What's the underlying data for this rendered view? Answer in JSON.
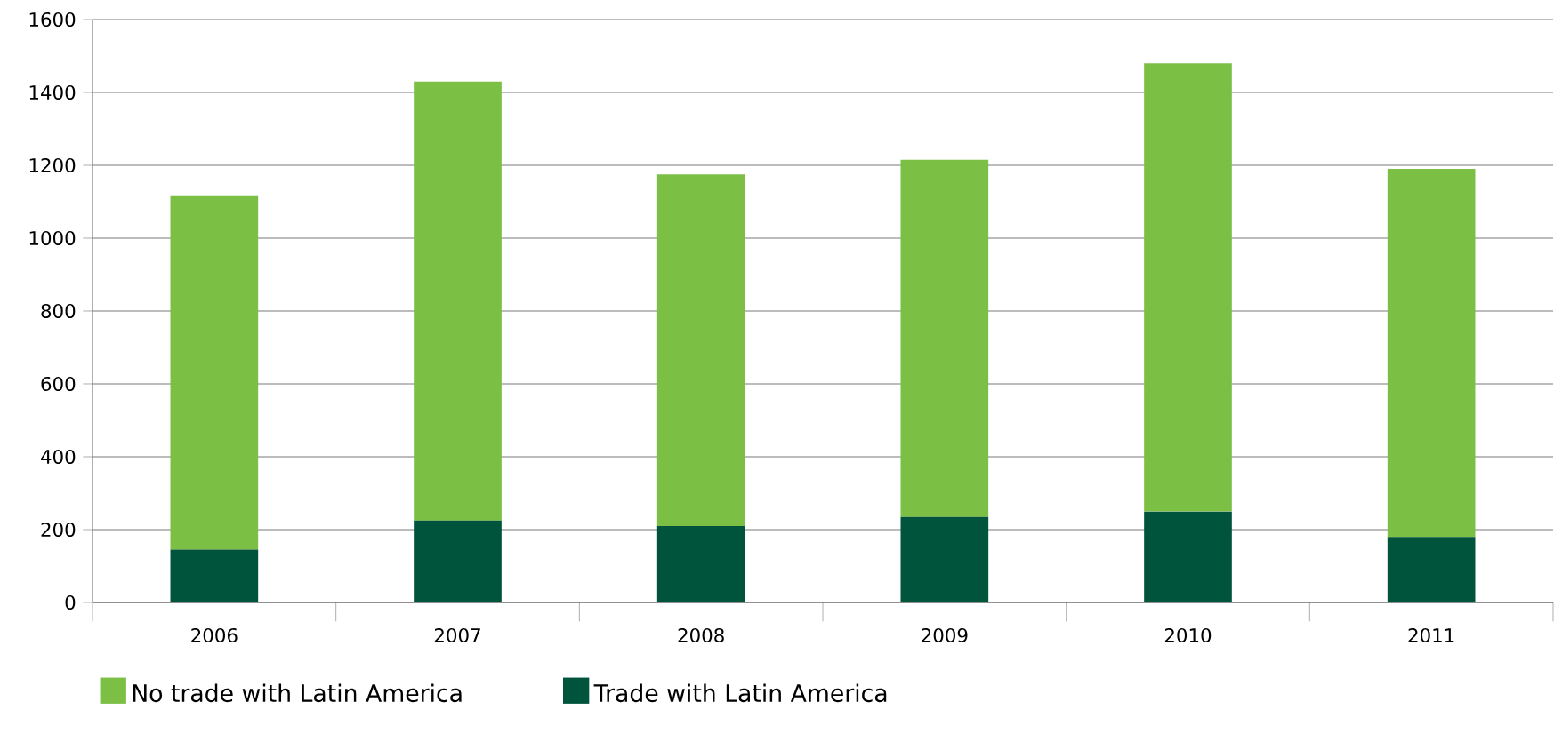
{
  "chart_data": {
    "type": "bar",
    "stacked": true,
    "categories": [
      "2006",
      "2007",
      "2008",
      "2009",
      "2010",
      "2011"
    ],
    "series": [
      {
        "name": "Trade with Latin America",
        "color": "#00543b",
        "values": [
          145,
          225,
          210,
          235,
          250,
          180
        ]
      },
      {
        "name": "No trade with Latin America",
        "color": "#7bbf44",
        "values": [
          970,
          1205,
          965,
          980,
          1230,
          1010
        ]
      }
    ],
    "ylim": [
      0,
      1600
    ],
    "yticks": [
      0,
      200,
      400,
      600,
      800,
      1000,
      1200,
      1400,
      1600
    ],
    "grid": "y",
    "legend": "bottom left"
  }
}
